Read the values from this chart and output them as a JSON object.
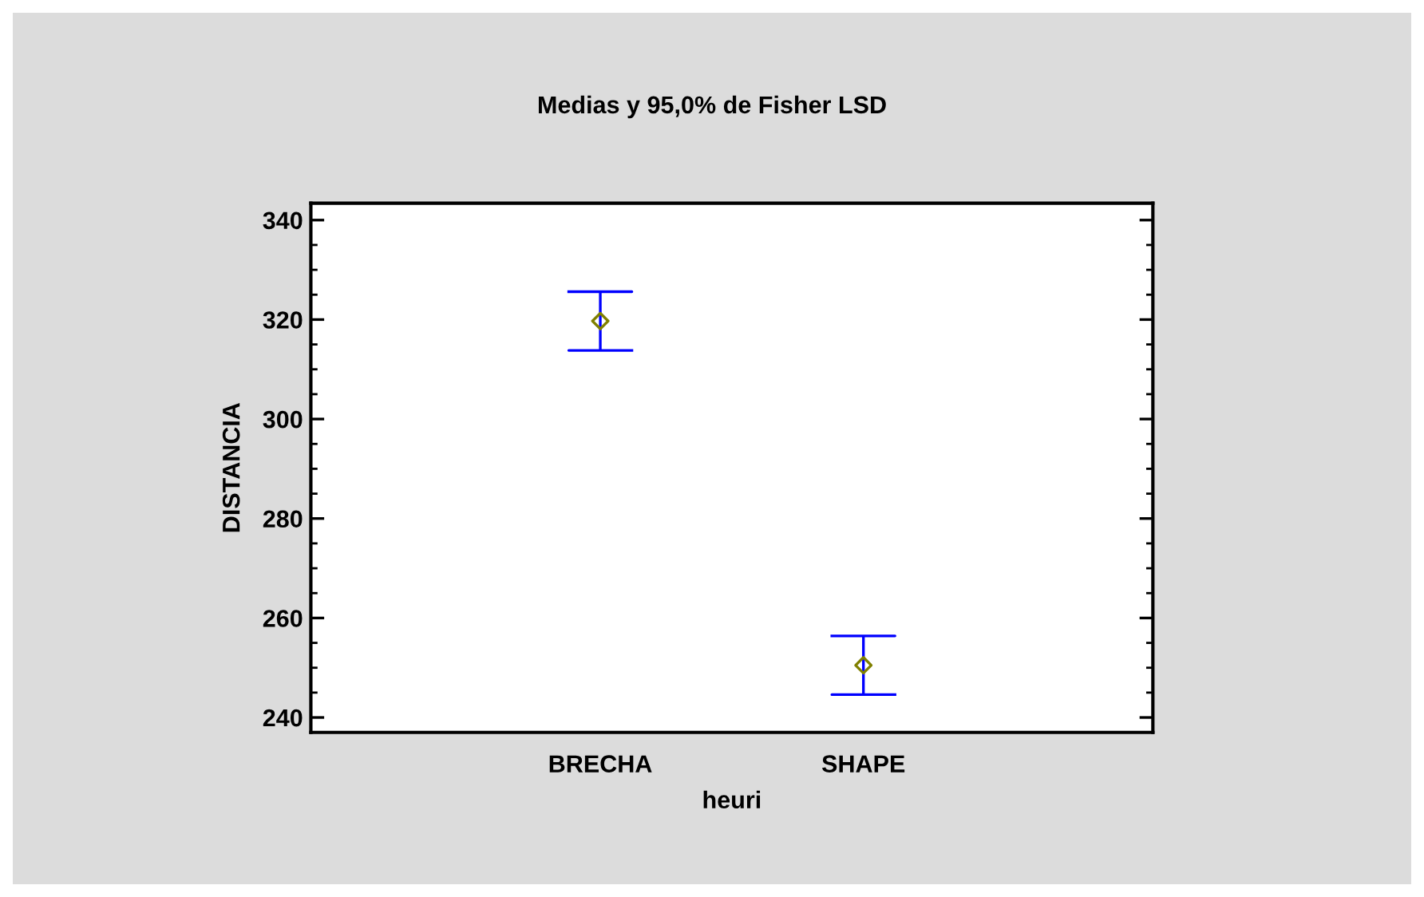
{
  "chart_data": {
    "type": "scatter",
    "title": "Medias y 95,0% de Fisher LSD",
    "xlabel": "heuri",
    "ylabel": "DISTANCIA",
    "categories": [
      "BRECHA",
      "SHAPE"
    ],
    "series": [
      {
        "color": "#0000ff",
        "colors": [
          "#808000",
          "#808000"
        ],
        "values": [
          319.7,
          250.5
        ],
        "errors": [
          5.9,
          5.9
        ]
      }
    ],
    "marker": "diamond",
    "ylim": [
      237,
      343.4
    ],
    "yticks": [
      240,
      260,
      280,
      300,
      320,
      340
    ],
    "grid": false,
    "legend": false
  }
}
